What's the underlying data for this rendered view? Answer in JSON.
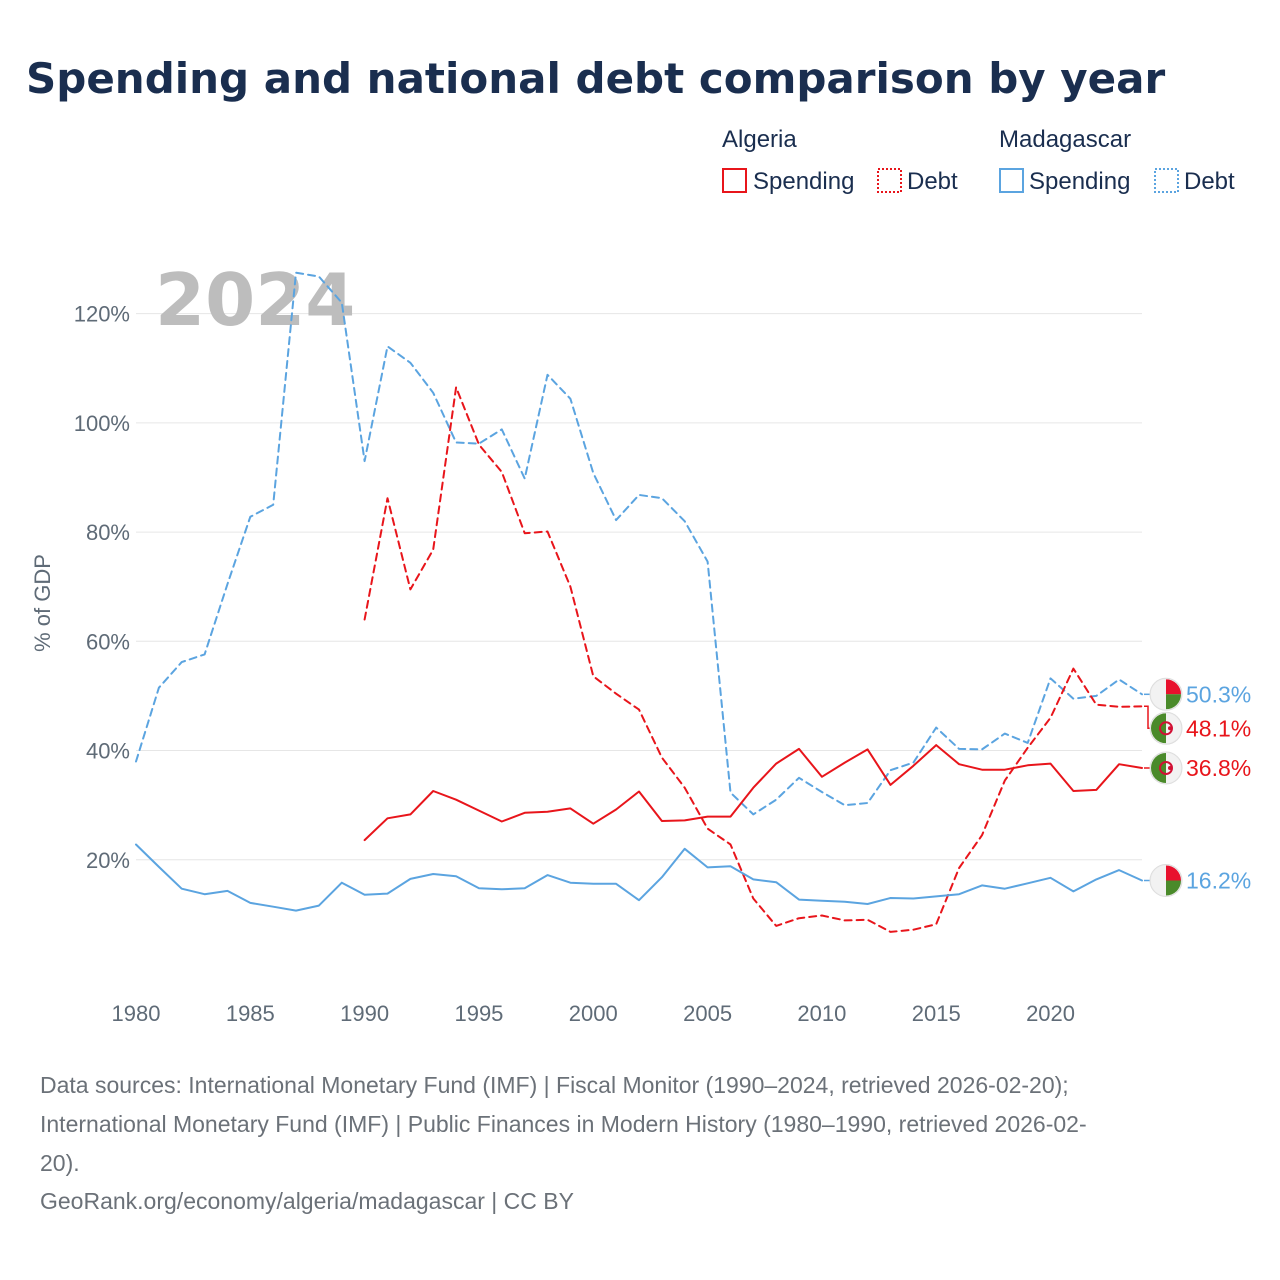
{
  "colors": {
    "algeria": "#e8151b",
    "madagascar": "#5ba4e0",
    "grid": "#e6e6e6",
    "title": "#1a2e4f",
    "tick": "#5f6b77",
    "watermark": "#bdbdbd",
    "footer": "#6b7178"
  },
  "legend": {
    "groups": [
      {
        "country": "Algeria",
        "color": "#e8151b",
        "items": [
          {
            "label": "Spending",
            "style": "solid"
          },
          {
            "label": "Debt",
            "style": "dotted"
          }
        ]
      },
      {
        "country": "Madagascar",
        "color": "#5ba4e0",
        "items": [
          {
            "label": "Spending",
            "style": "solid"
          },
          {
            "label": "Debt",
            "style": "dotted"
          }
        ]
      }
    ]
  },
  "footer": {
    "line1": "Data sources: International Monetary Fund (IMF) | Fiscal Monitor (1990–2024, retrieved 2026-02-20);",
    "line2": "International Monetary Fund (IMF) | Public Finances in Modern History (1980–1990, retrieved 2026-02-",
    "line3": "20).",
    "line4": "GeoRank.org/economy/algeria/madagascar | CC BY"
  },
  "chart_data": {
    "type": "line",
    "title": "Spending and national debt comparison by year",
    "ylabel": "% of GDP",
    "xlabel": "",
    "year_watermark": "2024",
    "xlim": [
      1980,
      2024
    ],
    "ylim": [
      0,
      130
    ],
    "x_ticks": [
      {
        "value": 1980,
        "label": "1980"
      },
      {
        "value": 1985,
        "label": "1985"
      },
      {
        "value": 1990,
        "label": "1990"
      },
      {
        "value": 1995,
        "label": "1995"
      },
      {
        "value": 2000,
        "label": "2000"
      },
      {
        "value": 2005,
        "label": "2005"
      },
      {
        "value": 2010,
        "label": "2010"
      },
      {
        "value": 2015,
        "label": "2015"
      },
      {
        "value": 2020,
        "label": "2020"
      }
    ],
    "y_ticks": [
      {
        "value": 20,
        "label": "20%"
      },
      {
        "value": 40,
        "label": "40%"
      },
      {
        "value": 60,
        "label": "60%"
      },
      {
        "value": 80,
        "label": "80%"
      },
      {
        "value": 100,
        "label": "100%"
      },
      {
        "value": 120,
        "label": "120%"
      }
    ],
    "series": [
      {
        "name": "Madagascar Debt",
        "country": "Madagascar",
        "metric": "Debt",
        "color": "#5ba4e0",
        "dash": true,
        "end_label": "50.3%",
        "end_value": 50.3,
        "points": [
          [
            1980,
            38
          ],
          [
            1981,
            51.5
          ],
          [
            1982,
            56.2
          ],
          [
            1983,
            57.6
          ],
          [
            1984,
            70.5
          ],
          [
            1985,
            82.8
          ],
          [
            1986,
            85
          ],
          [
            1987,
            127.5
          ],
          [
            1988,
            126.8
          ],
          [
            1989,
            122
          ],
          [
            1990,
            93
          ],
          [
            1991,
            114
          ],
          [
            1992,
            111
          ],
          [
            1993,
            105.5
          ],
          [
            1994,
            96.4
          ],
          [
            1995,
            96.2
          ],
          [
            1996,
            98.8
          ],
          [
            1997,
            89.8
          ],
          [
            1998,
            108.8
          ],
          [
            1999,
            104.4
          ],
          [
            2000,
            90.8
          ],
          [
            2001,
            82.2
          ],
          [
            2002,
            86.8
          ],
          [
            2003,
            86.2
          ],
          [
            2004,
            82
          ],
          [
            2005,
            74.6
          ],
          [
            2006,
            32.3
          ],
          [
            2007,
            28.3
          ],
          [
            2008,
            31
          ],
          [
            2009,
            35
          ],
          [
            2010,
            32.4
          ],
          [
            2011,
            30
          ],
          [
            2012,
            30.4
          ],
          [
            2013,
            36.4
          ],
          [
            2014,
            37.8
          ],
          [
            2015,
            44.2
          ],
          [
            2016,
            40.3
          ],
          [
            2017,
            40.2
          ],
          [
            2018,
            43.1
          ],
          [
            2019,
            41.4
          ],
          [
            2020,
            53.2
          ],
          [
            2021,
            49.5
          ],
          [
            2022,
            50
          ],
          [
            2023,
            53
          ],
          [
            2024,
            50.3
          ]
        ]
      },
      {
        "name": "Algeria Debt",
        "country": "Algeria",
        "metric": "Debt",
        "color": "#e8151b",
        "dash": true,
        "end_label": "48.1%",
        "end_value": 48.1,
        "points": [
          [
            1990,
            64
          ],
          [
            1991,
            86.2
          ],
          [
            1992,
            69.5
          ],
          [
            1993,
            76.8
          ],
          [
            1994,
            106.5
          ],
          [
            1995,
            96
          ],
          [
            1996,
            91
          ],
          [
            1997,
            79.8
          ],
          [
            1998,
            80.1
          ],
          [
            1999,
            70
          ],
          [
            2000,
            53.6
          ],
          [
            2001,
            50.4
          ],
          [
            2002,
            47.5
          ],
          [
            2003,
            38.7
          ],
          [
            2004,
            33.2
          ],
          [
            2005,
            25.7
          ],
          [
            2006,
            22.8
          ],
          [
            2007,
            12.9
          ],
          [
            2008,
            7.9
          ],
          [
            2009,
            9.3
          ],
          [
            2010,
            9.8
          ],
          [
            2011,
            8.9
          ],
          [
            2012,
            9
          ],
          [
            2013,
            6.8
          ],
          [
            2014,
            7.2
          ],
          [
            2015,
            8.2
          ],
          [
            2016,
            18.5
          ],
          [
            2017,
            24.5
          ],
          [
            2018,
            34.5
          ],
          [
            2019,
            40.5
          ],
          [
            2020,
            46
          ],
          [
            2021,
            55
          ],
          [
            2022,
            48.4
          ],
          [
            2023,
            48
          ],
          [
            2024,
            48.1
          ]
        ]
      },
      {
        "name": "Algeria Spending",
        "country": "Algeria",
        "metric": "Spending",
        "color": "#e8151b",
        "dash": false,
        "end_label": "36.8%",
        "end_value": 36.8,
        "points": [
          [
            1990,
            23.6
          ],
          [
            1991,
            27.6
          ],
          [
            1992,
            28.3
          ],
          [
            1993,
            32.6
          ],
          [
            1994,
            31
          ],
          [
            1995,
            29
          ],
          [
            1996,
            27
          ],
          [
            1997,
            28.6
          ],
          [
            1998,
            28.8
          ],
          [
            1999,
            29.4
          ],
          [
            2000,
            26.6
          ],
          [
            2001,
            29.2
          ],
          [
            2002,
            32.5
          ],
          [
            2003,
            27.1
          ],
          [
            2004,
            27.2
          ],
          [
            2005,
            27.9
          ],
          [
            2006,
            27.9
          ],
          [
            2007,
            33.2
          ],
          [
            2008,
            37.6
          ],
          [
            2009,
            40.3
          ],
          [
            2010,
            35.2
          ],
          [
            2011,
            37.8
          ],
          [
            2012,
            40.2
          ],
          [
            2013,
            33.7
          ],
          [
            2014,
            37.2
          ],
          [
            2015,
            41
          ],
          [
            2016,
            37.5
          ],
          [
            2017,
            36.5
          ],
          [
            2018,
            36.5
          ],
          [
            2019,
            37.3
          ],
          [
            2020,
            37.6
          ],
          [
            2021,
            32.6
          ],
          [
            2022,
            32.8
          ],
          [
            2023,
            37.5
          ],
          [
            2024,
            36.8
          ]
        ]
      },
      {
        "name": "Madagascar Spending",
        "country": "Madagascar",
        "metric": "Spending",
        "color": "#5ba4e0",
        "dash": false,
        "end_label": "16.2%",
        "end_value": 16.2,
        "points": [
          [
            1980,
            22.8
          ],
          [
            1981,
            18.7
          ],
          [
            1982,
            14.7
          ],
          [
            1983,
            13.7
          ],
          [
            1984,
            14.3
          ],
          [
            1985,
            12.1
          ],
          [
            1986,
            11.4
          ],
          [
            1987,
            10.7
          ],
          [
            1988,
            11.6
          ],
          [
            1989,
            15.8
          ],
          [
            1990,
            13.6
          ],
          [
            1991,
            13.8
          ],
          [
            1992,
            16.5
          ],
          [
            1993,
            17.4
          ],
          [
            1994,
            17
          ],
          [
            1995,
            14.8
          ],
          [
            1996,
            14.6
          ],
          [
            1997,
            14.8
          ],
          [
            1998,
            17.2
          ],
          [
            1999,
            15.8
          ],
          [
            2000,
            15.6
          ],
          [
            2001,
            15.6
          ],
          [
            2002,
            12.6
          ],
          [
            2003,
            16.8
          ],
          [
            2004,
            22
          ],
          [
            2005,
            18.6
          ],
          [
            2006,
            18.8
          ],
          [
            2007,
            16.4
          ],
          [
            2008,
            15.9
          ],
          [
            2009,
            12.7
          ],
          [
            2010,
            12.5
          ],
          [
            2011,
            12.3
          ],
          [
            2012,
            11.9
          ],
          [
            2013,
            13
          ],
          [
            2014,
            12.9
          ],
          [
            2015,
            13.3
          ],
          [
            2016,
            13.7
          ],
          [
            2017,
            15.3
          ],
          [
            2018,
            14.7
          ],
          [
            2019,
            15.7
          ],
          [
            2020,
            16.7
          ],
          [
            2021,
            14.2
          ],
          [
            2022,
            16.4
          ],
          [
            2023,
            18.1
          ],
          [
            2024,
            16.2
          ]
        ]
      }
    ]
  }
}
